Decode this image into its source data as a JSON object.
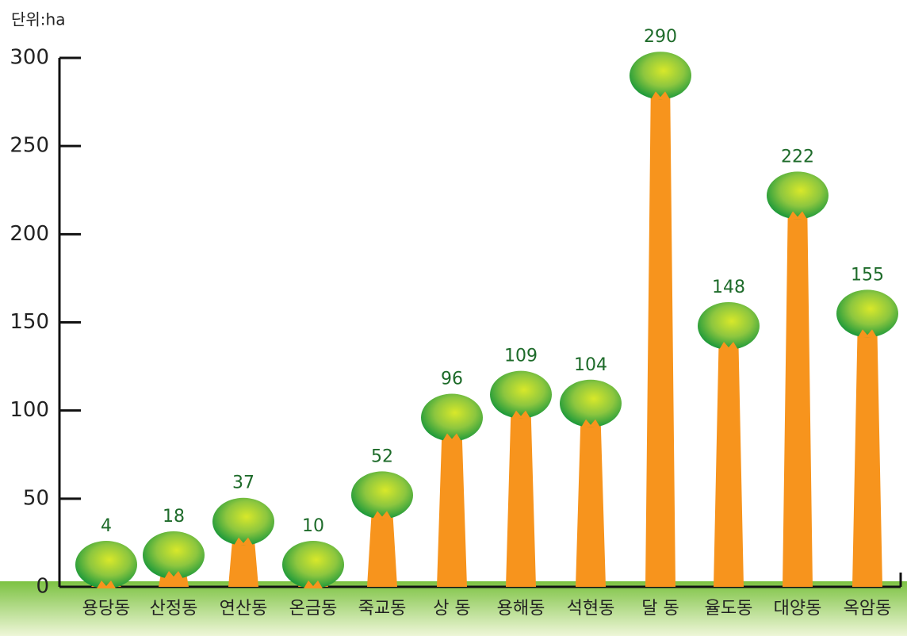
{
  "chart_data": {
    "type": "tree-bar",
    "unit": "단위:ha",
    "categories": [
      "용당동",
      "산정동",
      "연산동",
      "온금동",
      "죽교동",
      "상 동",
      "용해동",
      "석현동",
      "달 동",
      "율도동",
      "대양동",
      "옥암동"
    ],
    "values": [
      4,
      18,
      37,
      10,
      52,
      96,
      109,
      104,
      290,
      148,
      222,
      155
    ],
    "color": "#f7941d",
    "ylim": [
      0,
      300
    ],
    "yticks": [
      0,
      50,
      100,
      150,
      200,
      250,
      300
    ]
  }
}
